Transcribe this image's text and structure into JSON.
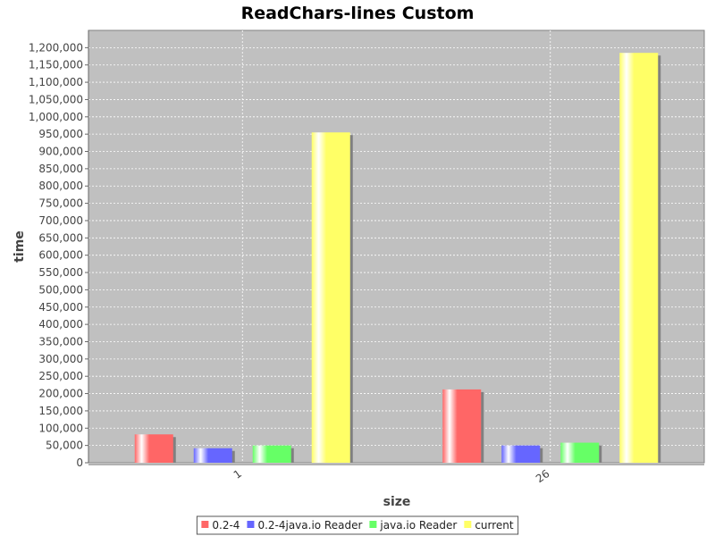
{
  "chart_data": {
    "type": "bar",
    "title": "ReadChars-lines Custom",
    "xlabel": "size",
    "ylabel": "time",
    "categories": [
      "1",
      "26"
    ],
    "series": [
      {
        "name": "0.2-4",
        "color": "#ff6666",
        "values": [
          82000,
          212000
        ]
      },
      {
        "name": "0.2-4java.io Reader",
        "color": "#6666ff",
        "values": [
          42000,
          50000
        ]
      },
      {
        "name": "java.io Reader",
        "color": "#66ff66",
        "values": [
          50000,
          58000
        ]
      },
      {
        "name": "current",
        "color": "#ffff66",
        "values": [
          955000,
          1185000
        ]
      }
    ],
    "ylim": [
      0,
      1250000
    ],
    "y_ticks": [
      "0",
      "50,000",
      "100,000",
      "150,000",
      "200,000",
      "250,000",
      "300,000",
      "350,000",
      "400,000",
      "450,000",
      "500,000",
      "550,000",
      "600,000",
      "650,000",
      "700,000",
      "750,000",
      "800,000",
      "850,000",
      "900,000",
      "950,000",
      "1,000,000",
      "1,050,000",
      "1,100,000",
      "1,150,000",
      "1,200,000"
    ],
    "grid": true,
    "plot_background": "#c0c0c0",
    "legend_position": "bottom"
  }
}
